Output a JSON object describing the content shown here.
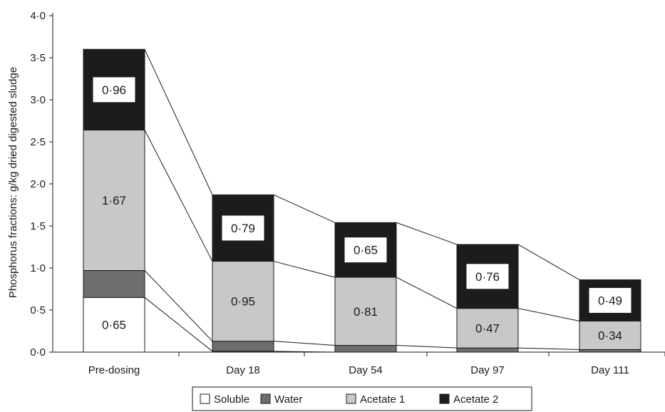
{
  "chart_data": {
    "type": "bar",
    "stacked": true,
    "categories": [
      "Pre-dosing",
      "Day 18",
      "Day 54",
      "Day 97",
      "Day 111"
    ],
    "ylabel": "Phosphorus fractions: g/kg dried digested sludge",
    "xlabel": "",
    "ylim": [
      0,
      4.0
    ],
    "yticks": [
      "0·0",
      "0·5",
      "1·0",
      "1·5",
      "2·0",
      "2·5",
      "3·0",
      "3·5",
      "4·0"
    ],
    "grid": false,
    "legend_position": "bottom",
    "connector_lines": true,
    "series": [
      {
        "name": "Soluble",
        "color": "#ffffff",
        "values": [
          0.65,
          0.01,
          0.0,
          0.0,
          0.0
        ],
        "labels": [
          "0·65",
          "",
          "",
          "",
          ""
        ],
        "label_style": "plain"
      },
      {
        "name": "Water",
        "color": "#6e6e6e",
        "values": [
          0.32,
          0.12,
          0.08,
          0.05,
          0.03
        ],
        "labels": [
          "",
          "",
          "",
          "",
          ""
        ],
        "label_style": "plain"
      },
      {
        "name": "Acetate 1",
        "color": "#c8c8c8",
        "values": [
          1.67,
          0.95,
          0.81,
          0.47,
          0.34
        ],
        "labels": [
          "1·67",
          "0·95",
          "0·81",
          "0·47",
          "0·34"
        ],
        "label_style": "plain"
      },
      {
        "name": "Acetate 2",
        "color": "#1c1c1c",
        "values": [
          0.96,
          0.79,
          0.65,
          0.76,
          0.49
        ],
        "labels": [
          "0·96",
          "0·79",
          "0·65",
          "0·76",
          "0·49"
        ],
        "label_style": "boxed"
      }
    ]
  }
}
